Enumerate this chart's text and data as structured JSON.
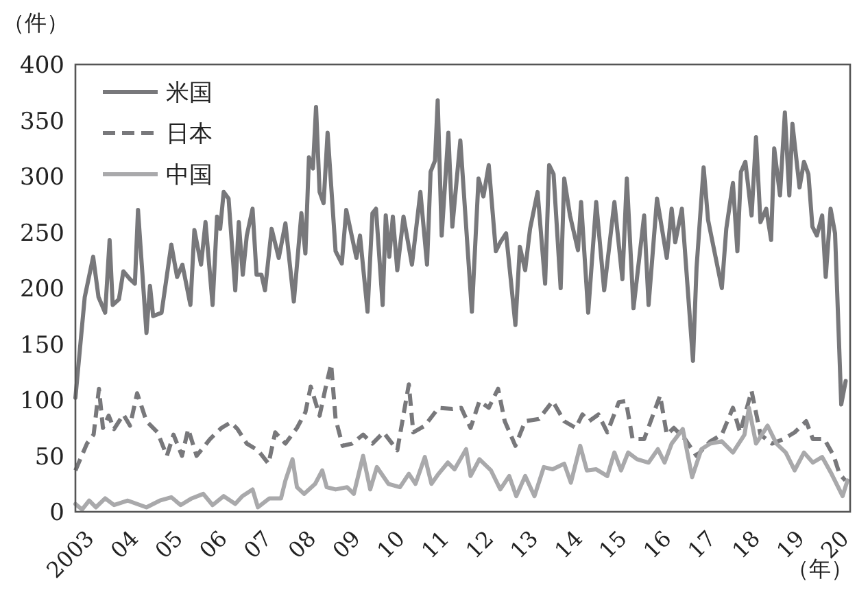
{
  "chart_data": {
    "type": "line",
    "ylabel": "（件）",
    "xlabel": "（年）",
    "legend": "top left",
    "grid": false,
    "xlim": [
      2003,
      2020.45
    ],
    "ylim": [
      0,
      400
    ],
    "yticks": [
      0,
      50,
      100,
      150,
      200,
      250,
      300,
      350,
      400
    ],
    "xticks": [
      {
        "value": 2003,
        "label": "2003"
      },
      {
        "value": 2004,
        "label": "04"
      },
      {
        "value": 2005,
        "label": "05"
      },
      {
        "value": 2006,
        "label": "06"
      },
      {
        "value": 2007,
        "label": "07"
      },
      {
        "value": 2008,
        "label": "08"
      },
      {
        "value": 2009,
        "label": "09"
      },
      {
        "value": 2010,
        "label": "10"
      },
      {
        "value": 2011,
        "label": "11"
      },
      {
        "value": 2012,
        "label": "12"
      },
      {
        "value": 2013,
        "label": "13"
      },
      {
        "value": 2014,
        "label": "14"
      },
      {
        "value": 2015,
        "label": "15"
      },
      {
        "value": 2016,
        "label": "16"
      },
      {
        "value": 2017,
        "label": "17"
      },
      {
        "value": 2018,
        "label": "18"
      },
      {
        "value": 2019,
        "label": "19"
      },
      {
        "value": 2020,
        "label": "20"
      }
    ],
    "series": [
      {
        "name": "米国",
        "color": "#78787b",
        "line_style": "solid",
        "x": [
          2003.0,
          2003.21,
          2003.4,
          2003.52,
          2003.67,
          2003.77,
          2003.84,
          2003.98,
          2004.08,
          2004.23,
          2004.34,
          2004.41,
          2004.6,
          2004.68,
          2004.75,
          2004.94,
          2005.16,
          2005.29,
          2005.41,
          2005.59,
          2005.68,
          2005.83,
          2005.93,
          2006.09,
          2006.19,
          2006.26,
          2006.34,
          2006.45,
          2006.6,
          2006.68,
          2006.77,
          2006.86,
          2006.99,
          2007.08,
          2007.19,
          2007.27,
          2007.42,
          2007.58,
          2007.73,
          2007.92,
          2008.09,
          2008.18,
          2008.26,
          2008.35,
          2008.42,
          2008.5,
          2008.59,
          2008.68,
          2008.86,
          2009.0,
          2009.1,
          2009.33,
          2009.41,
          2009.58,
          2009.69,
          2009.77,
          2009.92,
          2009.99,
          2010.07,
          2010.15,
          2010.25,
          2010.39,
          2010.58,
          2010.77,
          2010.92,
          2011.0,
          2011.1,
          2011.16,
          2011.25,
          2011.4,
          2011.49,
          2011.67,
          2011.93,
          2012.08,
          2012.19,
          2012.31,
          2012.47,
          2012.57,
          2012.7,
          2012.91,
          2013.01,
          2013.13,
          2013.24,
          2013.41,
          2013.58,
          2013.67,
          2013.77,
          2013.93,
          2014.01,
          2014.14,
          2014.32,
          2014.39,
          2014.55,
          2014.73,
          2014.91,
          2015.14,
          2015.32,
          2015.42,
          2015.57,
          2015.81,
          2015.91,
          2016.1,
          2016.32,
          2016.43,
          2016.51,
          2016.66,
          2016.91,
          2016.99,
          2017.15,
          2017.25,
          2017.56,
          2017.66,
          2017.81,
          2017.91,
          2017.99,
          2018.09,
          2018.23,
          2018.33,
          2018.43,
          2018.56,
          2018.67,
          2018.74,
          2018.87,
          2018.98,
          2019.08,
          2019.15,
          2019.31,
          2019.41,
          2019.51,
          2019.6,
          2019.7,
          2019.82,
          2019.9,
          2020.01,
          2020.11,
          2020.25,
          2020.35
        ],
        "values": [
          102,
          192,
          228,
          192,
          178,
          243,
          185,
          190,
          215,
          208,
          204,
          270,
          160,
          202,
          175,
          178,
          239,
          210,
          221,
          185,
          252,
          221,
          259,
          185,
          264,
          253,
          286,
          280,
          198,
          259,
          212,
          247,
          271,
          212,
          212,
          198,
          253,
          227,
          258,
          188,
          267,
          231,
          317,
          307,
          362,
          286,
          276,
          339,
          233,
          222,
          270,
          227,
          247,
          179,
          267,
          271,
          185,
          265,
          228,
          264,
          216,
          264,
          221,
          286,
          221,
          304,
          314,
          368,
          247,
          339,
          255,
          332,
          179,
          298,
          282,
          310,
          233,
          241,
          249,
          167,
          237,
          216,
          253,
          286,
          204,
          310,
          302,
          200,
          298,
          265,
          234,
          277,
          178,
          277,
          198,
          277,
          208,
          298,
          182,
          265,
          185,
          280,
          227,
          271,
          241,
          271,
          135,
          218,
          308,
          261,
          200,
          253,
          294,
          233,
          304,
          313,
          265,
          335,
          259,
          271,
          243,
          325,
          283,
          357,
          283,
          347,
          290,
          313,
          302,
          255,
          247,
          265,
          210,
          271,
          249,
          96,
          117
        ]
      },
      {
        "name": "日本",
        "color": "#78787b",
        "line_style": "dashed",
        "x": [
          2003.0,
          2003.26,
          2003.41,
          2003.53,
          2003.62,
          2003.75,
          2003.87,
          2004.08,
          2004.23,
          2004.39,
          2004.6,
          2004.85,
          2005.06,
          2005.21,
          2005.4,
          2005.54,
          2005.73,
          2006.03,
          2006.29,
          2006.5,
          2006.65,
          2006.86,
          2007.11,
          2007.35,
          2007.5,
          2007.73,
          2007.99,
          2008.18,
          2008.3,
          2008.5,
          2008.63,
          2008.76,
          2008.86,
          2009.02,
          2009.23,
          2009.48,
          2009.69,
          2009.94,
          2010.25,
          2010.51,
          2010.61,
          2010.87,
          2011.18,
          2011.49,
          2011.69,
          2011.9,
          2012.1,
          2012.31,
          2012.52,
          2012.67,
          2012.91,
          2013.13,
          2013.44,
          2013.75,
          2014.01,
          2014.27,
          2014.42,
          2014.57,
          2014.78,
          2014.98,
          2015.24,
          2015.4,
          2015.55,
          2015.81,
          2016.17,
          2016.32,
          2016.48,
          2016.73,
          2016.99,
          2017.3,
          2017.56,
          2017.81,
          2017.97,
          2018.23,
          2018.43,
          2018.69,
          2018.95,
          2019.2,
          2019.46,
          2019.61,
          2019.87,
          2020.08,
          2020.21,
          2020.34
        ],
        "values": [
          37,
          61,
          69,
          110,
          75,
          86,
          74,
          87,
          77,
          106,
          81,
          71,
          50,
          69,
          50,
          74,
          50,
          65,
          75,
          80,
          74,
          61,
          55,
          43,
          71,
          61,
          75,
          89,
          112,
          86,
          110,
          132,
          83,
          59,
          61,
          69,
          61,
          71,
          55,
          114,
          71,
          77,
          93,
          92,
          93,
          75,
          99,
          93,
          110,
          81,
          59,
          81,
          83,
          99,
          81,
          75,
          87,
          81,
          87,
          71,
          98,
          99,
          65,
          65,
          104,
          69,
          75,
          65,
          50,
          63,
          69,
          93,
          71,
          108,
          69,
          61,
          65,
          71,
          81,
          65,
          65,
          50,
          34,
          28
        ]
      },
      {
        "name": "中国",
        "color": "#a9a9ab",
        "line_style": "solid",
        "x": [
          2003.0,
          2003.15,
          2003.31,
          2003.46,
          2003.67,
          2003.87,
          2004.18,
          2004.6,
          2004.9,
          2005.16,
          2005.37,
          2005.62,
          2005.88,
          2006.09,
          2006.34,
          2006.6,
          2006.76,
          2006.99,
          2007.11,
          2007.37,
          2007.63,
          2007.73,
          2007.89,
          2007.99,
          2008.15,
          2008.4,
          2008.56,
          2008.66,
          2008.86,
          2009.12,
          2009.27,
          2009.48,
          2009.64,
          2009.79,
          2010.05,
          2010.31,
          2010.51,
          2010.66,
          2010.87,
          2011.02,
          2011.18,
          2011.39,
          2011.54,
          2011.67,
          2011.8,
          2011.9,
          2012.1,
          2012.36,
          2012.57,
          2012.77,
          2012.93,
          2013.13,
          2013.34,
          2013.55,
          2013.75,
          2014.01,
          2014.16,
          2014.37,
          2014.52,
          2014.73,
          2014.98,
          2015.14,
          2015.29,
          2015.45,
          2015.65,
          2015.91,
          2016.12,
          2016.27,
          2016.43,
          2016.68,
          2016.89,
          2017.1,
          2017.3,
          2017.56,
          2017.81,
          2018.07,
          2018.17,
          2018.33,
          2018.59,
          2018.79,
          2019.0,
          2019.2,
          2019.41,
          2019.61,
          2019.82,
          2020.03,
          2020.18,
          2020.28,
          2020.39
        ],
        "values": [
          7,
          2,
          10,
          4,
          12,
          6,
          10,
          4,
          10,
          13,
          6,
          12,
          16,
          6,
          14,
          7,
          14,
          20,
          4,
          12,
          12,
          28,
          47,
          22,
          16,
          25,
          37,
          22,
          20,
          22,
          16,
          50,
          20,
          40,
          25,
          22,
          34,
          25,
          49,
          25,
          34,
          44,
          38,
          47,
          56,
          32,
          47,
          37,
          20,
          32,
          14,
          32,
          14,
          40,
          38,
          43,
          26,
          59,
          37,
          38,
          32,
          53,
          37,
          53,
          47,
          44,
          56,
          44,
          61,
          74,
          31,
          56,
          61,
          63,
          53,
          69,
          93,
          61,
          77,
          61,
          53,
          37,
          53,
          44,
          49,
          34,
          22,
          14,
          28
        ]
      }
    ]
  }
}
